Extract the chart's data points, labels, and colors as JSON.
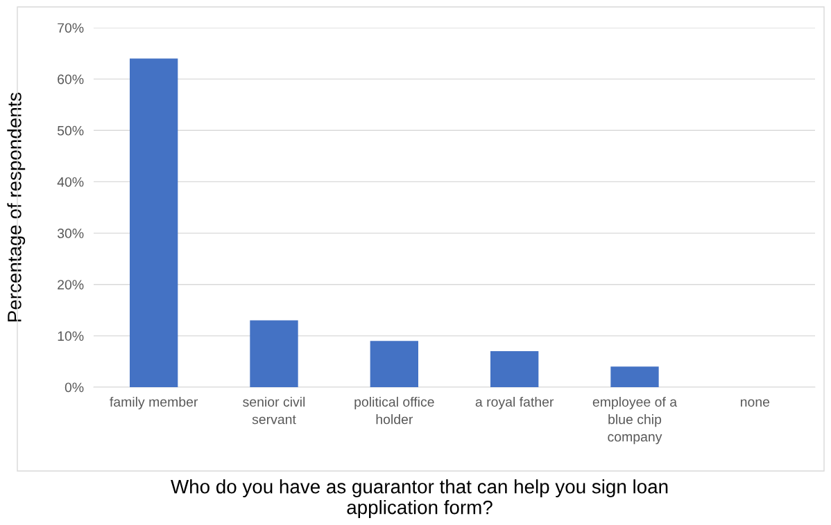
{
  "chart_data": {
    "type": "bar",
    "categories": [
      "family member",
      "senior civil\nservant",
      "political office\nholder",
      "a royal father",
      "employee of a\nblue chip\ncompany",
      "none"
    ],
    "values": [
      64,
      13,
      9,
      7,
      4,
      0
    ],
    "color": "#4472c4",
    "xlabel": "Who do you have as guarantor that can help you sign loan\napplication form?",
    "ylabel": "Percentage of respondents",
    "ylim": [
      0,
      70
    ],
    "yticks": [
      {
        "value": 0,
        "label": "0%"
      },
      {
        "value": 10,
        "label": "10%"
      },
      {
        "value": 20,
        "label": "20%"
      },
      {
        "value": 30,
        "label": "30%"
      },
      {
        "value": 40,
        "label": "40%"
      },
      {
        "value": 50,
        "label": "50%"
      },
      {
        "value": 60,
        "label": "60%"
      },
      {
        "value": 70,
        "label": "70%"
      }
    ],
    "grid": "y"
  }
}
